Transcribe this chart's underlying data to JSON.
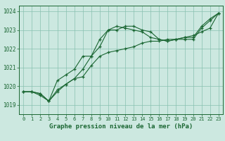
{
  "title": "Graphe pression niveau de la mer (hPa)",
  "background_color": "#cce8e0",
  "grid_color": "#88c0b0",
  "line_color": "#1a6632",
  "spine_color": "#1a6632",
  "xlim": [
    -0.5,
    23.5
  ],
  "ylim": [
    1018.5,
    1024.3
  ],
  "yticks": [
    1019,
    1020,
    1021,
    1022,
    1023,
    1024
  ],
  "xticks": [
    0,
    1,
    2,
    3,
    4,
    5,
    6,
    7,
    8,
    9,
    10,
    11,
    12,
    13,
    14,
    15,
    16,
    17,
    18,
    19,
    20,
    21,
    22,
    23
  ],
  "series": [
    [
      1019.7,
      1019.7,
      1019.6,
      1019.2,
      1019.8,
      1020.1,
      1020.4,
      1020.5,
      1021.1,
      1021.6,
      1021.8,
      1021.9,
      1022.0,
      1022.1,
      1022.3,
      1022.4,
      1022.4,
      1022.5,
      1022.5,
      1022.6,
      1022.7,
      1022.9,
      1023.1,
      1023.9
    ],
    [
      1019.7,
      1019.7,
      1019.6,
      1019.2,
      1020.3,
      1020.6,
      1020.9,
      1021.6,
      1021.6,
      1022.5,
      1023.0,
      1023.2,
      1023.1,
      1023.0,
      1022.9,
      1022.6,
      1022.5,
      1022.4,
      1022.5,
      1022.5,
      1022.5,
      1023.1,
      1023.5,
      1023.9
    ],
    [
      1019.7,
      1019.7,
      1019.5,
      1019.2,
      1019.7,
      1020.1,
      1020.4,
      1020.9,
      1021.6,
      1022.1,
      1023.0,
      1023.0,
      1023.2,
      1023.2,
      1023.0,
      1022.9,
      1022.5,
      1022.4,
      1022.5,
      1022.6,
      1022.6,
      1023.2,
      1023.6,
      1023.9
    ]
  ],
  "title_fontsize": 6.5,
  "tick_fontsize": 5.5,
  "xtick_fontsize": 5.0,
  "linewidth": 0.8,
  "markersize": 3.5,
  "markeredgewidth": 0.9
}
